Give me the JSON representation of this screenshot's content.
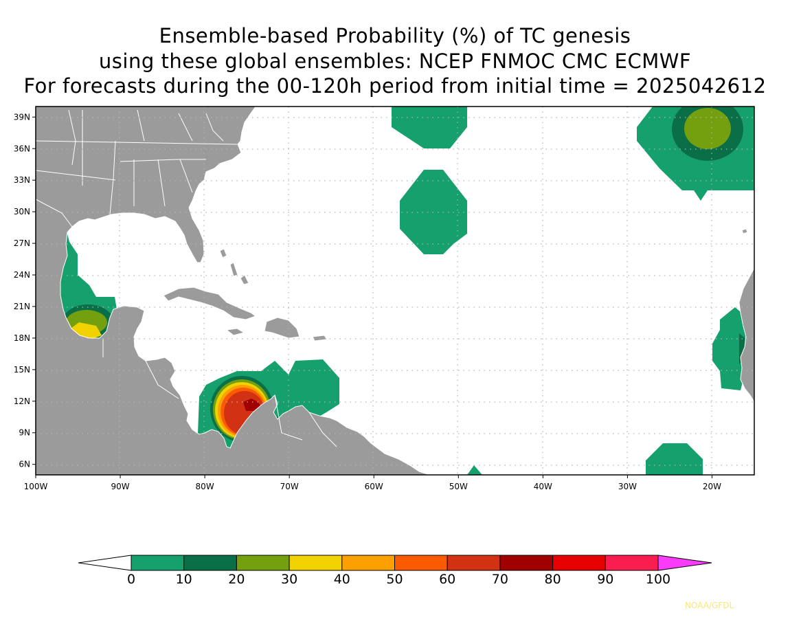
{
  "title": {
    "line1": "Ensemble-based Probability (%) of TC genesis",
    "line2": "using these global ensembles:   NCEP FNMOC CMC ECMWF",
    "line3": "For forecasts during the 00-120h period from initial time = 2025042612"
  },
  "map": {
    "lon_range": [
      -100,
      -15
    ],
    "lat_range": [
      5,
      40
    ],
    "lon_ticks": [
      "100W",
      "90W",
      "80W",
      "70W",
      "60W",
      "50W",
      "40W",
      "30W",
      "20W"
    ],
    "lat_ticks": [
      "39N",
      "36N",
      "33N",
      "30N",
      "27N",
      "24N",
      "21N",
      "18N",
      "15N",
      "12N",
      "9N",
      "6N"
    ],
    "colors": {
      "land": "#9b9b9b",
      "ocean": "#ffffff",
      "border": "#ffffff",
      "grid": "#b4b4b4"
    }
  },
  "colorbar": {
    "labels": [
      "0",
      "10",
      "20",
      "30",
      "40",
      "50",
      "60",
      "70",
      "80",
      "90",
      "100"
    ],
    "colors": [
      "#16a06e",
      "#0a6e46",
      "#74a010",
      "#f0d200",
      "#fca000",
      "#fa5a00",
      "#d23214",
      "#a00000",
      "#e60000",
      "#fa1e50",
      "#fa3cfa"
    ],
    "low_color": "#ffffff"
  },
  "credit": {
    "text": "NOAA/GFDL",
    "color": "#f5e87a"
  }
}
